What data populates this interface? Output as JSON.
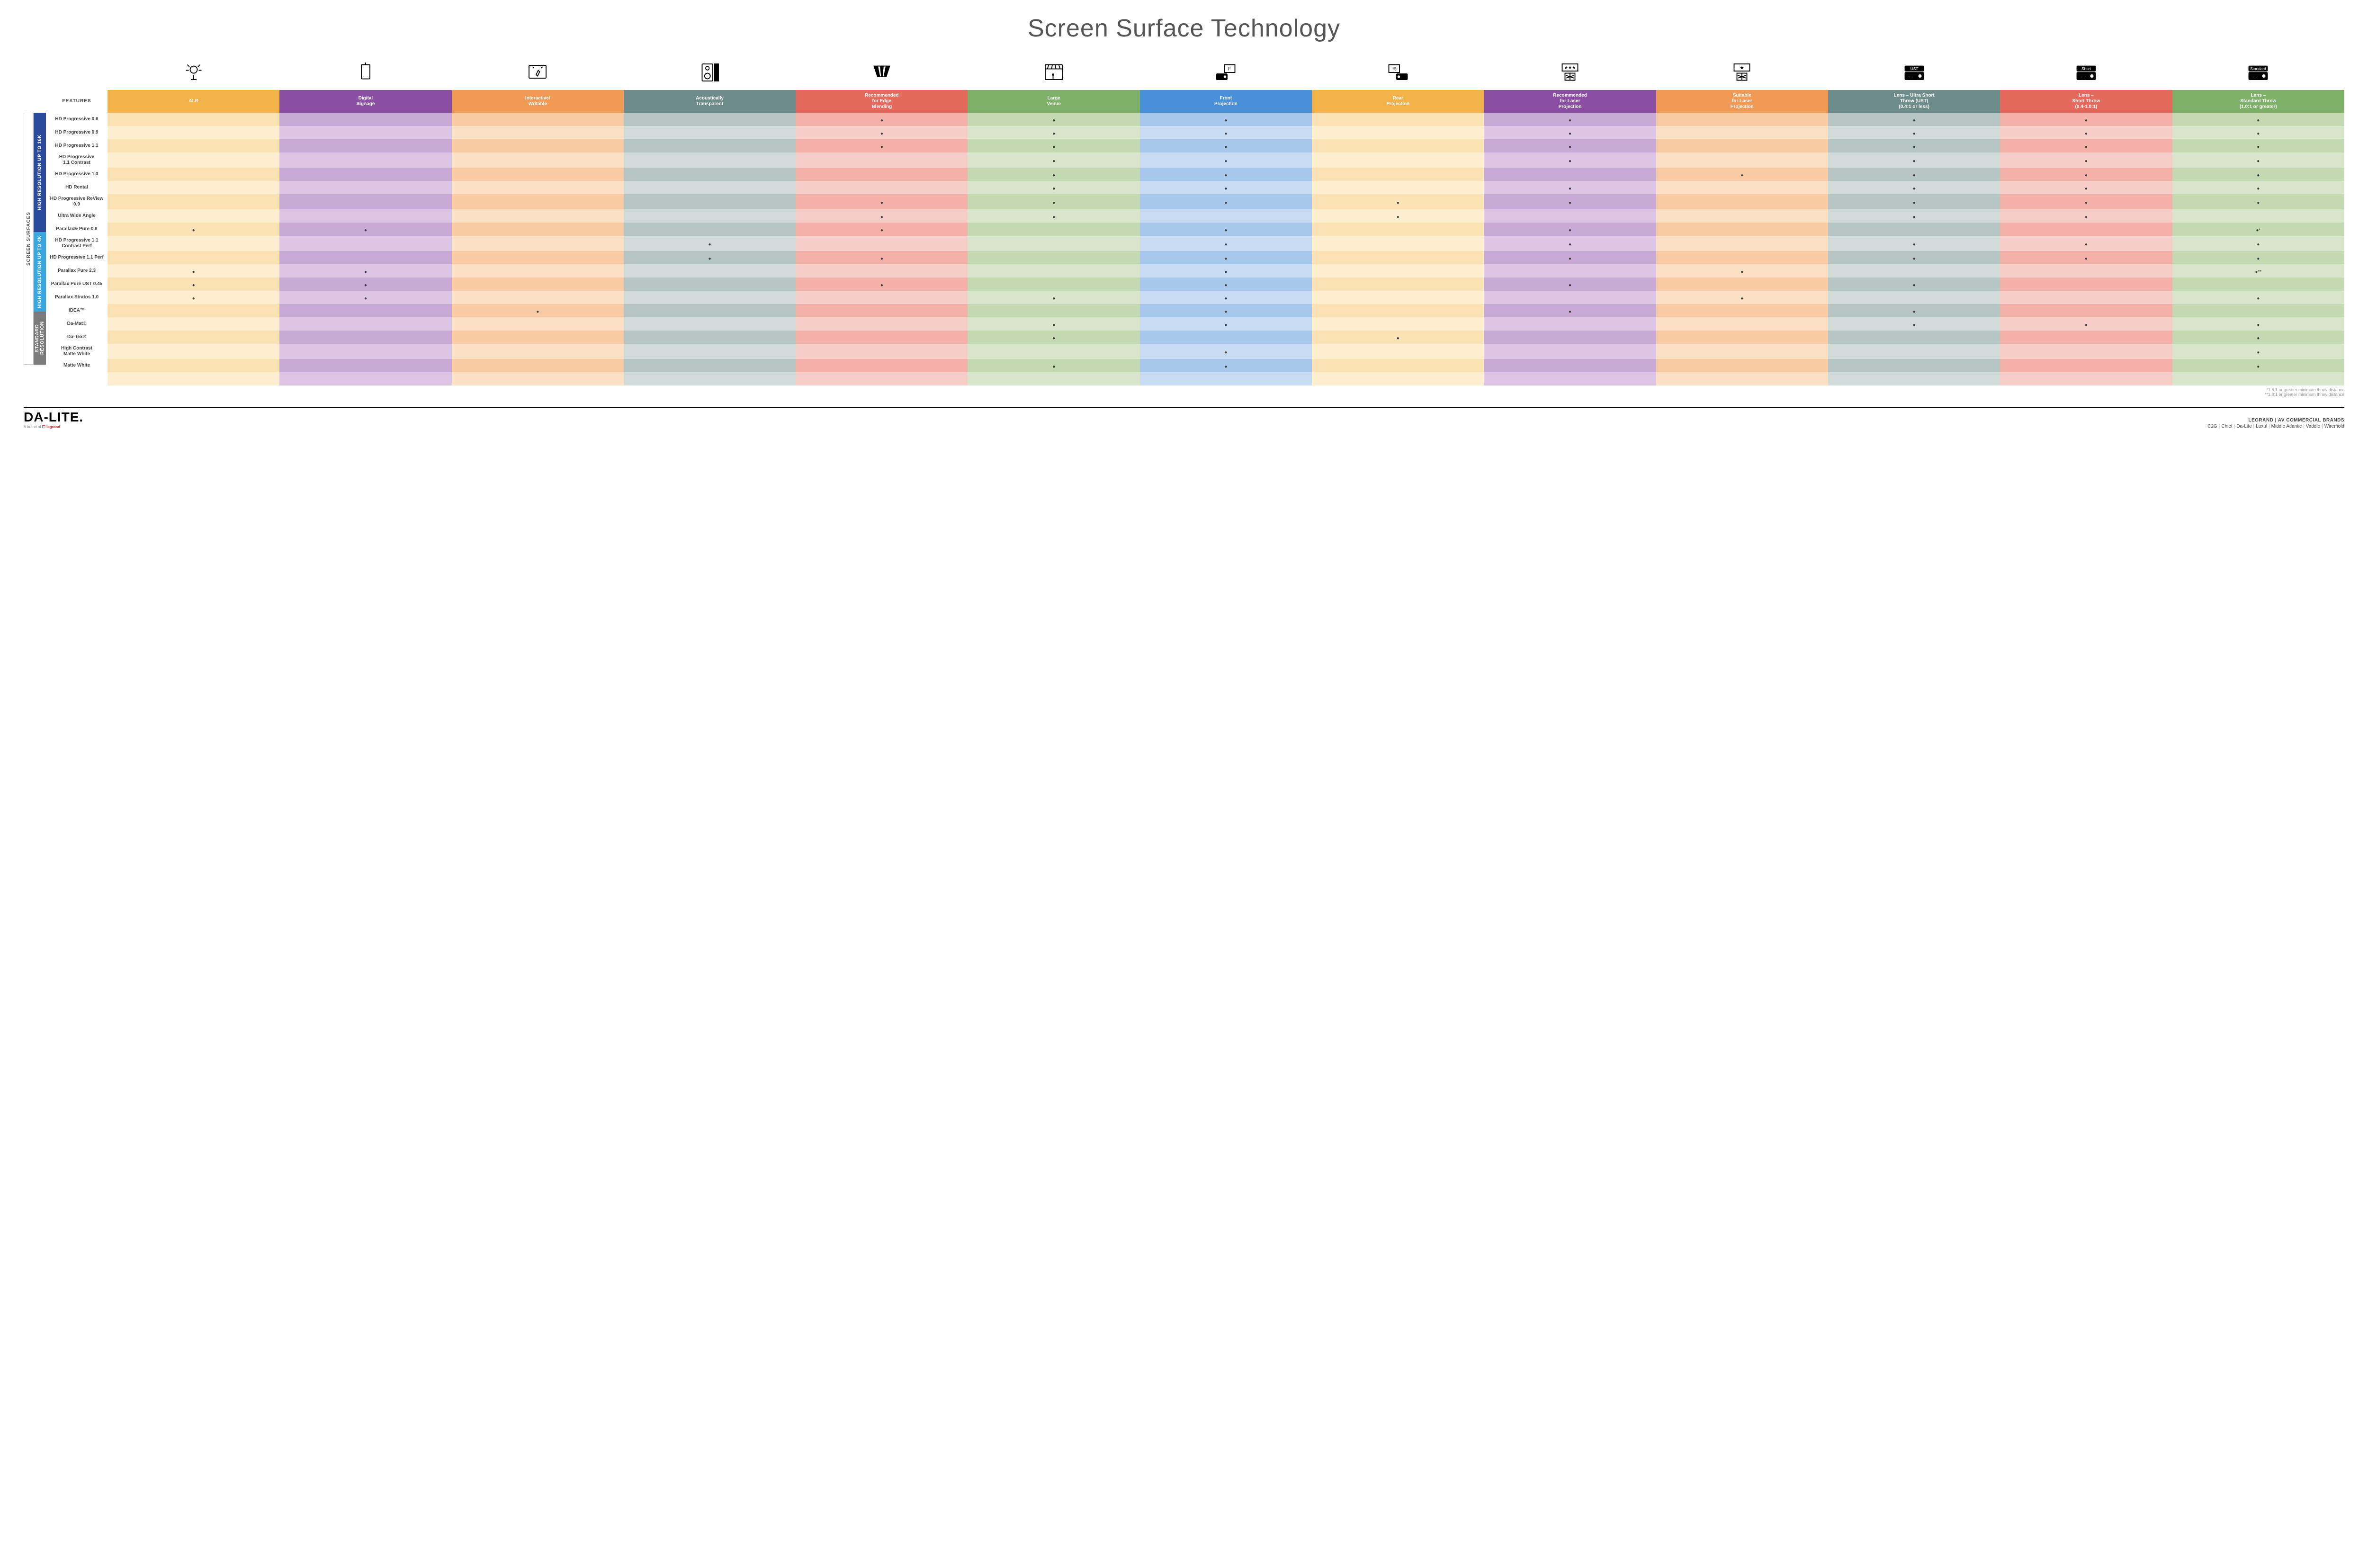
{
  "title": "Screen Surface Technology",
  "featuresLabel": "FEATURES",
  "sideOuter": "SCREEN SURFACES",
  "groups": [
    {
      "label": "HIGH RESOLUTION UP TO 16K",
      "color": "#2b4a9b",
      "rows": 9
    },
    {
      "label": "HIGH RESOLUTION UP TO 4K",
      "color": "#3aa7e0",
      "rows": 6
    },
    {
      "label": "STANDARD RESOLUTION",
      "color": "#7a7a7a",
      "rows": 4
    }
  ],
  "columns": [
    {
      "key": "alr",
      "label": "ALR",
      "color": "#f3b14a",
      "light": "#fbe2b5",
      "lighter": "#fdeecf"
    },
    {
      "key": "sign",
      "label": "Digital\nSignage",
      "color": "#8a4fa3",
      "light": "#c9a9d6",
      "lighter": "#ddc5e6"
    },
    {
      "key": "write",
      "label": "Interactive/\nWritable",
      "color": "#f19a56",
      "light": "#f8cba5",
      "lighter": "#fbe0c6"
    },
    {
      "key": "acou",
      "label": "Acoustically\nTransparent",
      "color": "#6e8d8a",
      "light": "#b6c6c4",
      "lighter": "#d0dad9"
    },
    {
      "key": "edge",
      "label": "Recommended\nfor Edge\nBlending",
      "color": "#e46a5e",
      "light": "#f2b0a8",
      "lighter": "#f7cdc7"
    },
    {
      "key": "large",
      "label": "Large\nVenue",
      "color": "#7fb069",
      "light": "#c2d9b1",
      "lighter": "#d8e7cc"
    },
    {
      "key": "front",
      "label": "Front\nProjection",
      "color": "#4a90d9",
      "light": "#a8c7ec",
      "lighter": "#c7dbf3"
    },
    {
      "key": "rear",
      "label": "Rear\nProjection",
      "color": "#f3b14a",
      "light": "#fbe2b5",
      "lighter": "#fdeecf"
    },
    {
      "key": "rlas",
      "label": "Recommended\nfor Laser\nProjection",
      "color": "#8a4fa3",
      "light": "#c9a9d6",
      "lighter": "#ddc5e6"
    },
    {
      "key": "slas",
      "label": "Suitable\nfor Laser\nProjection",
      "color": "#f19a56",
      "light": "#f8cba5",
      "lighter": "#fbe0c6"
    },
    {
      "key": "ust",
      "label": "Lens – Ultra Short\nThrow (UST)\n(0.4:1 or less)",
      "color": "#6e8d8a",
      "light": "#b6c6c4",
      "lighter": "#d0dad9"
    },
    {
      "key": "short",
      "label": "Lens –\nShort Throw\n(0.4-1.0:1)",
      "color": "#e46a5e",
      "light": "#f2b0a8",
      "lighter": "#f7cdc7"
    },
    {
      "key": "std",
      "label": "Lens –\nStandard Throw\n(1.0:1 or greater)",
      "color": "#7fb069",
      "light": "#c2d9b1",
      "lighter": "#d8e7cc"
    }
  ],
  "rows": [
    {
      "label": "HD Progressive 0.6",
      "dots": [
        "edge",
        "large",
        "front",
        "rlas",
        "ust",
        "short",
        "std"
      ]
    },
    {
      "label": "HD Progressive 0.9",
      "dots": [
        "edge",
        "large",
        "front",
        "rlas",
        "ust",
        "short",
        "std"
      ]
    },
    {
      "label": "HD Progressive 1.1",
      "dots": [
        "edge",
        "large",
        "front",
        "rlas",
        "ust",
        "short",
        "std"
      ]
    },
    {
      "label": "HD Progressive\n1.1 Contrast",
      "dots": [
        "large",
        "front",
        "rlas",
        "ust",
        "short",
        "std"
      ]
    },
    {
      "label": "HD Progressive 1.3",
      "dots": [
        "large",
        "front",
        "slas",
        "ust",
        "short",
        "std"
      ]
    },
    {
      "label": "HD Rental",
      "dots": [
        "large",
        "front",
        "rlas",
        "ust",
        "short",
        "std"
      ]
    },
    {
      "label": "HD Progressive ReView 0.9",
      "dots": [
        "edge",
        "large",
        "front",
        "rear",
        "rlas",
        "ust",
        "short",
        "std"
      ]
    },
    {
      "label": "Ultra Wide Angle",
      "dots": [
        "edge",
        "large",
        "rear",
        "ust",
        "short"
      ]
    },
    {
      "label": "Parallax® Pure 0.8",
      "dots": [
        "alr",
        "sign",
        "edge",
        "front",
        "rlas"
      ],
      "suffix": {
        "std": "●*"
      }
    },
    {
      "label": "HD Progressive 1.1\nContrast Perf",
      "dots": [
        "acou",
        "front",
        "rlas",
        "ust",
        "short",
        "std"
      ]
    },
    {
      "label": "HD Progressive 1.1 Perf",
      "dots": [
        "acou",
        "edge",
        "front",
        "rlas",
        "ust",
        "short",
        "std"
      ]
    },
    {
      "label": "Parallax Pure 2.3",
      "dots": [
        "alr",
        "sign",
        "front",
        "slas"
      ],
      "suffix": {
        "std": "●**"
      }
    },
    {
      "label": "Parallax Pure UST 0.45",
      "dots": [
        "alr",
        "sign",
        "edge",
        "front",
        "rlas",
        "ust"
      ]
    },
    {
      "label": "Parallax Stratos 1.0",
      "dots": [
        "alr",
        "sign",
        "large",
        "front",
        "slas",
        "std"
      ]
    },
    {
      "label": "IDEA™",
      "dots": [
        "write",
        "front",
        "rlas",
        "ust"
      ]
    },
    {
      "label": "Da-Mat®",
      "dots": [
        "large",
        "front",
        "ust",
        "short",
        "std"
      ]
    },
    {
      "label": "Da-Tex®",
      "dots": [
        "large",
        "rear",
        "std"
      ]
    },
    {
      "label": "High Contrast\nMatte White",
      "dots": [
        "front",
        "std"
      ]
    },
    {
      "label": "Matte White",
      "dots": [
        "large",
        "front",
        "std"
      ]
    }
  ],
  "footnotes": [
    "*1.5:1 or greater minimum throw distance",
    "**1.8:1 or greater minimum throw distance"
  ],
  "footer": {
    "brand": "DA-LITE.",
    "brandSub1": "A brand of ",
    "brandSub2": "legrand",
    "rightTop": "LEGRAND | AV COMMERCIAL BRANDS",
    "brands": [
      "C2G",
      "Chief",
      "Da-Lite",
      "Luxul",
      "Middle Atlantic",
      "Vaddio",
      "Wiremold"
    ]
  },
  "iconLabels": [
    "alr-icon",
    "signage-icon",
    "writable-icon",
    "acoustic-icon",
    "edge-icon",
    "large-venue-icon",
    "front-proj-icon",
    "rear-proj-icon",
    "rec-laser-icon",
    "suit-laser-icon",
    "ust-icon",
    "short-icon",
    "standard-icon"
  ],
  "projLabels": {
    "ust": "UST",
    "short": "Short",
    "std": "Standard"
  }
}
